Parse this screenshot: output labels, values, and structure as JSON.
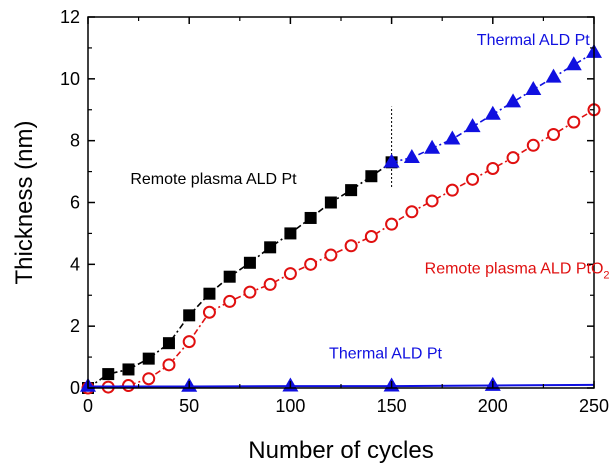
{
  "chart_data": {
    "type": "scatter",
    "title": "",
    "xlabel": "Number of cycles",
    "ylabel": "Thickness (nm)",
    "xlim": [
      0,
      250
    ],
    "ylim": [
      0,
      12
    ],
    "xticks": [
      0,
      50,
      100,
      150,
      200,
      250
    ],
    "yticks": [
      0,
      2,
      4,
      6,
      8,
      10,
      12
    ],
    "grid": false,
    "series": [
      {
        "key": "remote_pt",
        "color": "#000000",
        "marker": "square-filled",
        "line": "dashdot",
        "x": [
          0,
          10,
          20,
          30,
          40,
          50,
          60,
          70,
          80,
          90,
          100,
          110,
          120,
          130,
          140,
          150
        ],
        "y": [
          0.0,
          0.45,
          0.6,
          0.95,
          1.45,
          2.35,
          3.05,
          3.6,
          4.05,
          4.55,
          5.0,
          5.5,
          6.0,
          6.4,
          6.85,
          7.3
        ]
      },
      {
        "key": "remote_pto2",
        "color": "#e01010",
        "marker": "circle-open",
        "line": "dashdot",
        "x": [
          0,
          10,
          20,
          30,
          40,
          50,
          60,
          70,
          80,
          90,
          100,
          110,
          120,
          130,
          140,
          150,
          160,
          170,
          180,
          190,
          200,
          210,
          220,
          230,
          240,
          250
        ],
        "y": [
          0.0,
          0.03,
          0.08,
          0.3,
          0.75,
          1.5,
          2.45,
          2.8,
          3.1,
          3.35,
          3.7,
          4.0,
          4.3,
          4.6,
          4.9,
          5.3,
          5.7,
          6.05,
          6.4,
          6.75,
          7.1,
          7.45,
          7.85,
          8.2,
          8.6,
          9.0
        ]
      },
      {
        "key": "thermal_pt_cont",
        "color": "#1010e0",
        "marker": "triangle-filled",
        "line": "dashdot",
        "x": [
          150,
          160,
          170,
          180,
          190,
          200,
          210,
          220,
          230,
          240,
          250
        ],
        "y": [
          7.3,
          7.45,
          7.75,
          8.05,
          8.45,
          8.85,
          9.25,
          9.65,
          10.05,
          10.45,
          10.85
        ]
      },
      {
        "key": "thermal_pt",
        "color": "#1010e0",
        "marker": "triangle-filled",
        "line": "solid",
        "x": [
          0,
          50,
          100,
          150,
          200
        ],
        "y": [
          0.05,
          0.05,
          0.06,
          0.06,
          0.08
        ],
        "line_extends_to": [
          250,
          0.1
        ]
      }
    ],
    "annotations": [
      {
        "text": "Thermal ALD Pt",
        "color": "#1010e0",
        "x": 220,
        "y": 11.1,
        "anchor": "middle"
      },
      {
        "text": "Remote plasma ALD Pt",
        "color": "#000000",
        "x": 62,
        "y": 6.6,
        "anchor": "middle"
      },
      {
        "text": "Remote plasma ALD PtO",
        "sub": "2",
        "color": "#e01010",
        "x": 212,
        "y": 3.7,
        "anchor": "middle"
      },
      {
        "text": "Thermal ALD Pt",
        "color": "#1010e0",
        "x": 147,
        "y": 0.95,
        "anchor": "middle"
      }
    ],
    "vline": {
      "x": 150,
      "y0": 6.5,
      "y1": 9.1,
      "color": "#000000",
      "style": "dotted"
    }
  }
}
